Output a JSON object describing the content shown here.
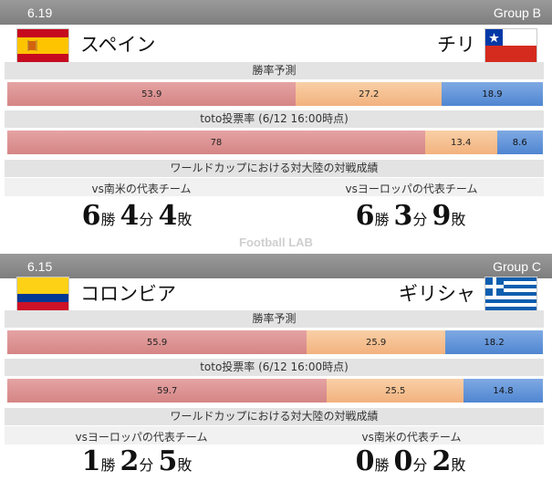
{
  "watermark": "Football LAB",
  "labels": {
    "win_prob": "勝率予測",
    "toto_vote": "toto投票率 (6/12 16:00時点)",
    "continent_record": "ワールドカップにおける対大陸の対戦成績",
    "win": "勝",
    "draw": "分",
    "loss": "敗"
  },
  "matches": [
    {
      "date": "6.19",
      "group": "Group B",
      "home": {
        "name": "スペイン",
        "flag": "spain-flag"
      },
      "away": {
        "name": "チリ",
        "flag": "chile-flag"
      },
      "win_prob": {
        "home": 53.9,
        "draw": 27.2,
        "away": 18.9
      },
      "toto_vote": {
        "home": 78,
        "draw": 13.4,
        "away": 8.6
      },
      "records": [
        {
          "label": "vs南米の代表チーム",
          "w": "6",
          "d": "4",
          "l": "4"
        },
        {
          "label": "vsヨーロッパの代表チーム",
          "w": "6",
          "d": "3",
          "l": "9"
        }
      ]
    },
    {
      "date": "6.15",
      "group": "Group C",
      "home": {
        "name": "コロンビア",
        "flag": "colombia-flag"
      },
      "away": {
        "name": "ギリシャ",
        "flag": "greece-flag"
      },
      "win_prob": {
        "home": 55.9,
        "draw": 25.9,
        "away": 18.2
      },
      "toto_vote": {
        "home": 59.7,
        "draw": 25.5,
        "away": 14.8
      },
      "records": [
        {
          "label": "vsヨーロッパの代表チーム",
          "w": "1",
          "d": "2",
          "l": "5"
        },
        {
          "label": "vs南米の代表チーム",
          "w": "0",
          "d": "0",
          "l": "2"
        }
      ]
    }
  ]
}
